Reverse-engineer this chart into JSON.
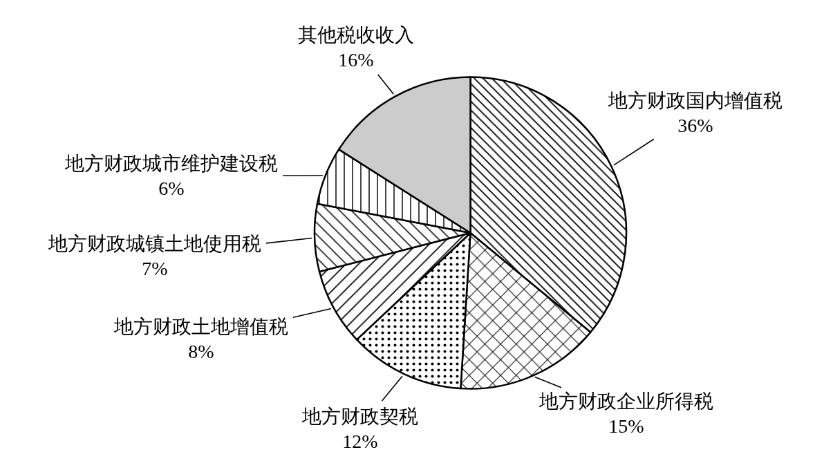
{
  "chart_data": {
    "type": "pie",
    "categories": [
      "地方财政国内增值税",
      "地方财政企业所得税",
      "地方财政契税",
      "地方财政土地增值税",
      "地方财政城镇土地使用税",
      "地方财政城市维护建设税",
      "其他税收收入"
    ],
    "values": [
      36,
      15,
      12,
      8,
      7,
      6,
      16
    ],
    "value_labels": [
      "36%",
      "15%",
      "12%",
      "8%",
      "7%",
      "6%",
      "16%"
    ],
    "colors": [
      "#000000",
      "#000000",
      "#000000",
      "#000000",
      "#000000",
      "#000000",
      "#cccccc"
    ]
  }
}
